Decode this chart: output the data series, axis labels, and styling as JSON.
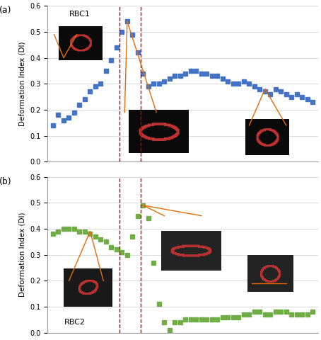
{
  "rbc1_x": [
    1,
    2,
    3,
    4,
    5,
    6,
    7,
    8,
    9,
    10,
    11,
    12,
    13,
    14,
    15,
    16,
    17,
    18,
    19,
    20,
    21,
    22,
    23,
    24,
    25,
    26,
    27,
    28,
    29,
    30,
    31,
    32,
    33,
    34,
    35,
    36,
    37,
    38,
    39,
    40,
    41,
    42,
    43,
    44,
    45,
    46,
    47,
    48,
    49,
    50
  ],
  "rbc1_y": [
    0.14,
    0.18,
    0.16,
    0.17,
    0.19,
    0.22,
    0.24,
    0.27,
    0.29,
    0.3,
    0.35,
    0.39,
    0.44,
    0.5,
    0.54,
    0.49,
    0.42,
    0.34,
    0.29,
    0.3,
    0.3,
    0.31,
    0.32,
    0.33,
    0.33,
    0.34,
    0.35,
    0.35,
    0.34,
    0.34,
    0.33,
    0.33,
    0.32,
    0.31,
    0.3,
    0.3,
    0.31,
    0.3,
    0.29,
    0.28,
    0.27,
    0.26,
    0.28,
    0.27,
    0.26,
    0.25,
    0.26,
    0.25,
    0.24,
    0.23
  ],
  "rbc2_x": [
    1,
    2,
    3,
    4,
    5,
    6,
    7,
    8,
    9,
    10,
    11,
    12,
    13,
    14,
    15,
    16,
    17,
    18,
    19,
    20,
    21,
    22,
    23,
    24,
    25,
    26,
    27,
    28,
    29,
    30,
    31,
    32,
    33,
    34,
    35,
    36,
    37,
    38,
    39,
    40,
    41,
    42,
    43,
    44,
    45,
    46,
    47,
    48,
    49,
    50
  ],
  "rbc2_y": [
    0.38,
    0.39,
    0.4,
    0.4,
    0.4,
    0.39,
    0.39,
    0.38,
    0.37,
    0.36,
    0.35,
    0.33,
    0.32,
    0.31,
    0.3,
    0.37,
    0.45,
    0.49,
    0.44,
    0.27,
    0.11,
    0.04,
    0.01,
    0.04,
    0.04,
    0.05,
    0.05,
    0.05,
    0.05,
    0.05,
    0.05,
    0.05,
    0.06,
    0.06,
    0.06,
    0.06,
    0.07,
    0.07,
    0.08,
    0.08,
    0.07,
    0.07,
    0.08,
    0.08,
    0.08,
    0.07,
    0.07,
    0.07,
    0.07,
    0.08
  ],
  "vline1_x": 13.5,
  "vline2_x": 17.5,
  "rbc1_color": "#4472C4",
  "rbc2_color": "#70AD47",
  "connector_color": "#E36C09",
  "vline_color": "#C00000",
  "ylabel": "Deformation Index (DI)",
  "ylim": [
    0,
    0.6
  ],
  "yticks": [
    0,
    0.1,
    0.2,
    0.3,
    0.4,
    0.5,
    0.6
  ],
  "label_a": "(a)",
  "label_b": "(b)",
  "rbc1_label": "RBC1",
  "rbc2_label": "RBC2",
  "bg_color": "#FFFFFF",
  "grid_color": "#CCCCCC",
  "xlim": [
    0,
    51
  ]
}
